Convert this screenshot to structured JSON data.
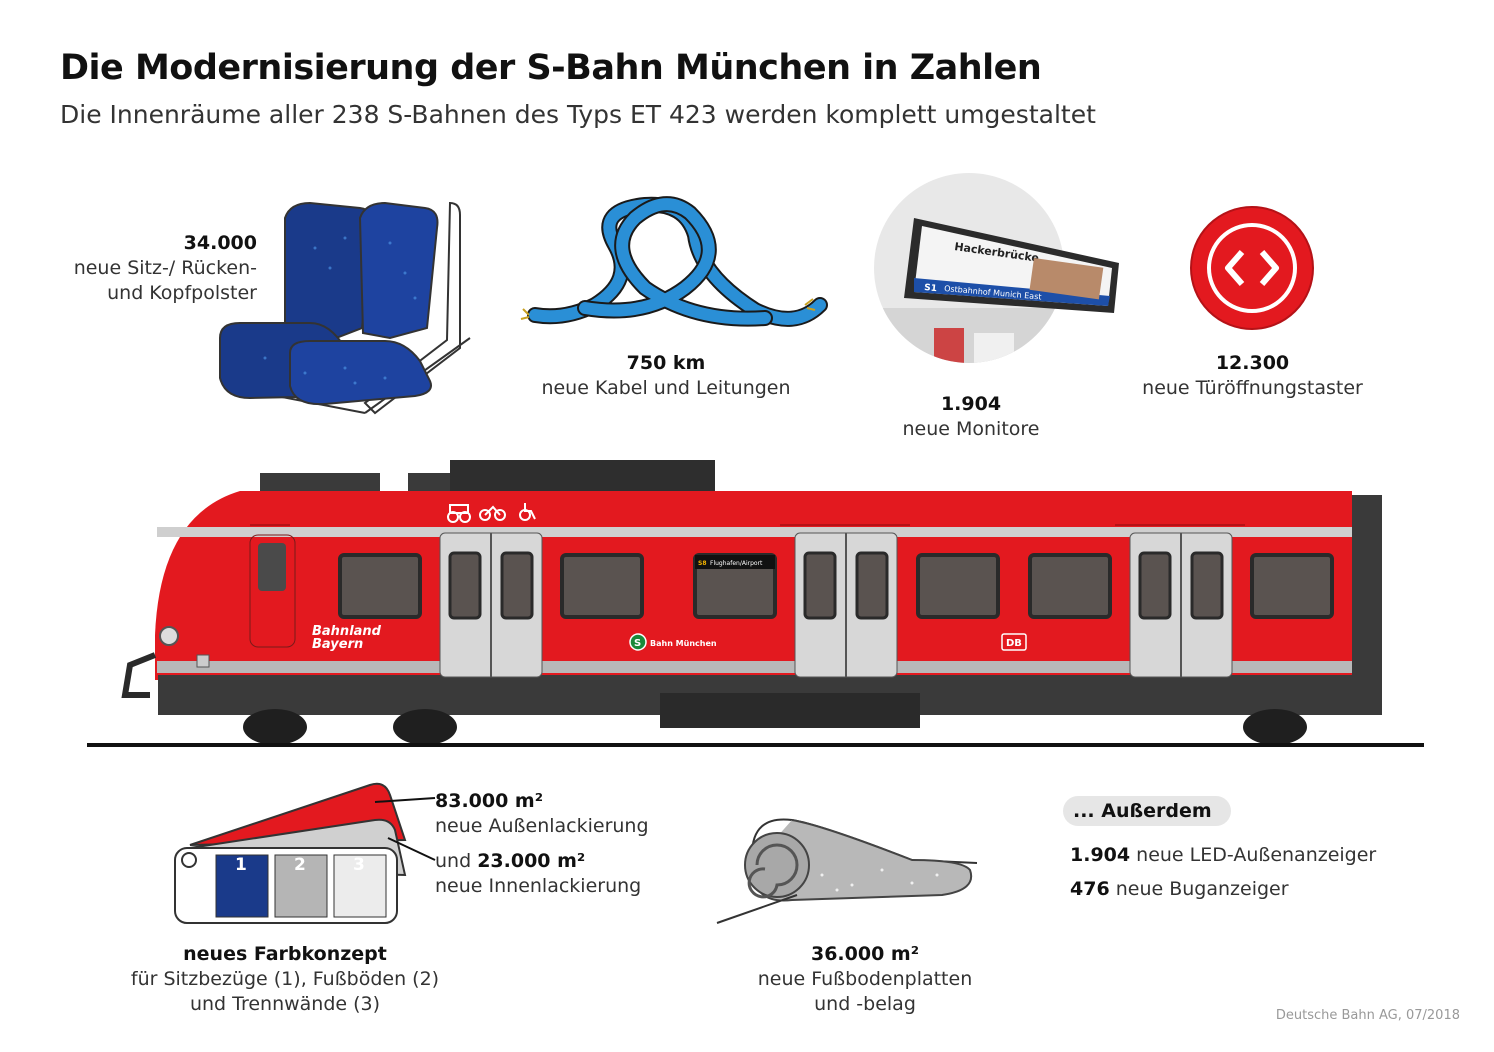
{
  "header": {
    "title": "Die Modernisierung der S-Bahn München in Zahlen",
    "subtitle": "Die Innenräume aller 238 S-Bahnen des Typs ET 423 werden komplett umgestaltet"
  },
  "stats": {
    "seats": {
      "value": "34.000",
      "line1": "neue Sitz-/ Rücken-",
      "line2": "und Kopfpolster",
      "icon": "seat-icon"
    },
    "cables": {
      "value": "750 km",
      "line1": "neue Kabel und Leitungen",
      "icon": "cable-icon"
    },
    "monitors": {
      "value": "1.904",
      "line1": "neue Monitore",
      "icon": "monitor-icon"
    },
    "buttons": {
      "value": "12.300",
      "line1": "neue Türöffnungstaster",
      "icon": "door-button-icon"
    },
    "paint": {
      "value1": "83.000 m²",
      "line1": "neue Außenlackierung",
      "prefix2": "und",
      "value2": "23.000 m²",
      "line2": "neue Innenlackierung",
      "icon": "paint-swatch-icon"
    },
    "colors": {
      "value": "neues Farbkonzept",
      "line1": "für Sitzbezüge (1), Fußböden (2)",
      "line2": "und Trennwände (3)",
      "swatch_labels": [
        "1",
        "2",
        "3"
      ]
    },
    "floor": {
      "value": "36.000 m²",
      "line1": "neue Fußbodenplatten",
      "line2": "und -belag",
      "icon": "floor-roll-icon"
    }
  },
  "monitor_screen": {
    "station": "Hackerbrücke",
    "line": "S1",
    "destination": "Ostbahnhof Munich East"
  },
  "extras": {
    "heading": "... Außerdem",
    "item1_value": "1.904",
    "item1_text": "neue LED-Außenanzeiger",
    "item2_value": "476",
    "item2_text": "neue Buganzeiger"
  },
  "train": {
    "icon": "train-illustration",
    "brand_line1": "Bahnland",
    "brand_line2": "Bayern",
    "sbahn_logo": "S",
    "sbahn_label": "Bahn München",
    "db_logo": "DB",
    "display_text": "Flughafen/Airport",
    "display_line": "S8"
  },
  "footer": {
    "credit": "Deutsche Bahn AG, 07/2018"
  },
  "colors": {
    "db_red": "#e3191f",
    "dark_grey": "#3a3a3a",
    "seat_blue": "#1a3a8a",
    "cable_blue": "#2a8fd6"
  }
}
